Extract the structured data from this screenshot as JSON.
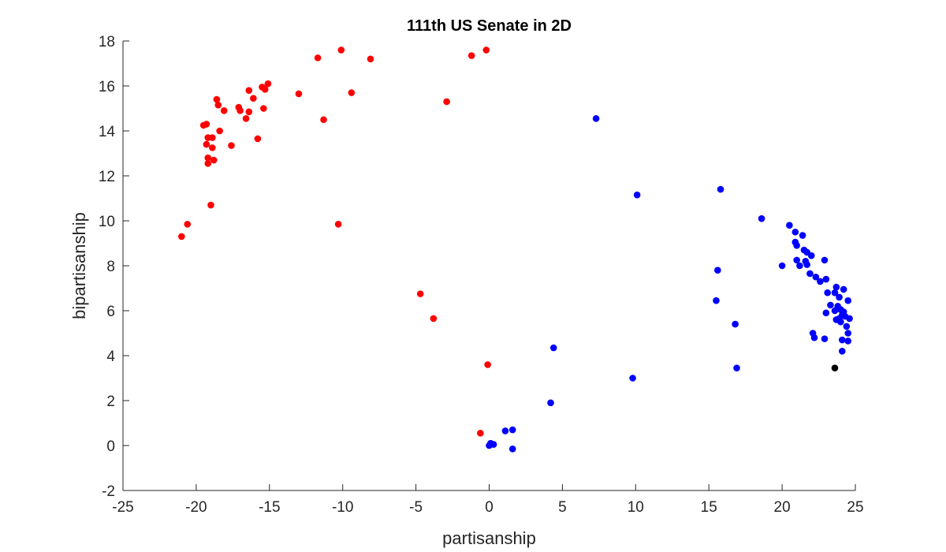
{
  "chart_data": {
    "type": "scatter",
    "title": "111th US Senate in 2D",
    "xlabel": "partisanship",
    "ylabel": "bipartisanship",
    "xlim": [
      -25,
      25
    ],
    "ylim": [
      -2,
      18
    ],
    "xticks": [
      -25,
      -20,
      -15,
      -10,
      -5,
      0,
      5,
      10,
      15,
      20,
      25
    ],
    "yticks": [
      -2,
      0,
      2,
      4,
      6,
      8,
      10,
      12,
      14,
      16,
      18
    ],
    "grid": false,
    "series": [
      {
        "color": "#ff0000",
        "points": [
          [
            -21.0,
            9.3
          ],
          [
            -20.6,
            9.85
          ],
          [
            -19.5,
            14.25
          ],
          [
            -19.3,
            14.3
          ],
          [
            -19.2,
            13.7
          ],
          [
            -19.3,
            13.4
          ],
          [
            -19.2,
            12.8
          ],
          [
            -19.2,
            12.55
          ],
          [
            -18.9,
            13.7
          ],
          [
            -18.9,
            13.25
          ],
          [
            -18.8,
            12.7
          ],
          [
            -19.0,
            10.7
          ],
          [
            -18.6,
            15.4
          ],
          [
            -18.5,
            15.15
          ],
          [
            -18.4,
            14.0
          ],
          [
            -18.1,
            14.9
          ],
          [
            -17.6,
            13.35
          ],
          [
            -17.1,
            15.05
          ],
          [
            -17.0,
            14.9
          ],
          [
            -16.6,
            14.55
          ],
          [
            -16.4,
            15.8
          ],
          [
            -16.4,
            14.85
          ],
          [
            -16.1,
            15.45
          ],
          [
            -15.8,
            13.65
          ],
          [
            -15.5,
            15.95
          ],
          [
            -15.4,
            15.0
          ],
          [
            -15.3,
            15.85
          ],
          [
            -15.1,
            16.1
          ],
          [
            -13.0,
            15.65
          ],
          [
            -11.7,
            17.25
          ],
          [
            -10.1,
            17.6
          ],
          [
            -11.3,
            14.5
          ],
          [
            -10.3,
            9.85
          ],
          [
            -9.4,
            15.7
          ],
          [
            -8.1,
            17.2
          ],
          [
            -4.7,
            6.75
          ],
          [
            -3.8,
            5.65
          ],
          [
            -2.9,
            15.3
          ],
          [
            -1.2,
            17.35
          ],
          [
            -0.2,
            17.6
          ],
          [
            -0.1,
            3.6
          ],
          [
            -0.6,
            0.55
          ]
        ]
      },
      {
        "color": "#0000ff",
        "points": [
          [
            7.3,
            14.55
          ],
          [
            10.1,
            11.15
          ],
          [
            15.8,
            11.4
          ],
          [
            18.6,
            10.1
          ],
          [
            20.5,
            9.8
          ],
          [
            20.9,
            9.5
          ],
          [
            21.4,
            9.35
          ],
          [
            20.9,
            9.05
          ],
          [
            21.0,
            8.9
          ],
          [
            21.5,
            8.7
          ],
          [
            21.7,
            8.6
          ],
          [
            22.0,
            8.45
          ],
          [
            21.0,
            8.25
          ],
          [
            21.6,
            8.2
          ],
          [
            21.7,
            8.05
          ],
          [
            21.2,
            8.0
          ],
          [
            20.0,
            8.0
          ],
          [
            22.9,
            8.25
          ],
          [
            21.9,
            7.65
          ],
          [
            22.3,
            7.5
          ],
          [
            22.6,
            7.3
          ],
          [
            23.0,
            7.4
          ],
          [
            23.7,
            7.05
          ],
          [
            23.6,
            6.8
          ],
          [
            23.1,
            6.8
          ],
          [
            24.2,
            6.95
          ],
          [
            23.9,
            6.6
          ],
          [
            24.5,
            6.45
          ],
          [
            23.3,
            6.25
          ],
          [
            23.8,
            6.2
          ],
          [
            24.0,
            6.05
          ],
          [
            23.6,
            6.0
          ],
          [
            24.2,
            5.95
          ],
          [
            23.0,
            5.9
          ],
          [
            24.1,
            5.8
          ],
          [
            24.3,
            5.75
          ],
          [
            23.9,
            5.65
          ],
          [
            24.6,
            5.65
          ],
          [
            23.7,
            5.6
          ],
          [
            24.0,
            5.5
          ],
          [
            24.4,
            5.3
          ],
          [
            24.5,
            5.0
          ],
          [
            22.1,
            5.0
          ],
          [
            22.2,
            4.8
          ],
          [
            22.9,
            4.75
          ],
          [
            24.1,
            4.7
          ],
          [
            24.5,
            4.65
          ],
          [
            24.1,
            4.2
          ],
          [
            15.6,
            7.8
          ],
          [
            15.5,
            6.45
          ],
          [
            16.8,
            5.4
          ],
          [
            16.9,
            3.45
          ],
          [
            9.8,
            3.0
          ],
          [
            4.4,
            4.35
          ],
          [
            4.2,
            1.9
          ],
          [
            1.6,
            0.7
          ],
          [
            1.1,
            0.65
          ],
          [
            0.3,
            0.05
          ],
          [
            0.0,
            0.0
          ],
          [
            0.1,
            0.1
          ],
          [
            1.6,
            -0.15
          ]
        ]
      },
      {
        "color": "#000000",
        "points": [
          [
            23.6,
            3.45
          ]
        ]
      }
    ]
  }
}
